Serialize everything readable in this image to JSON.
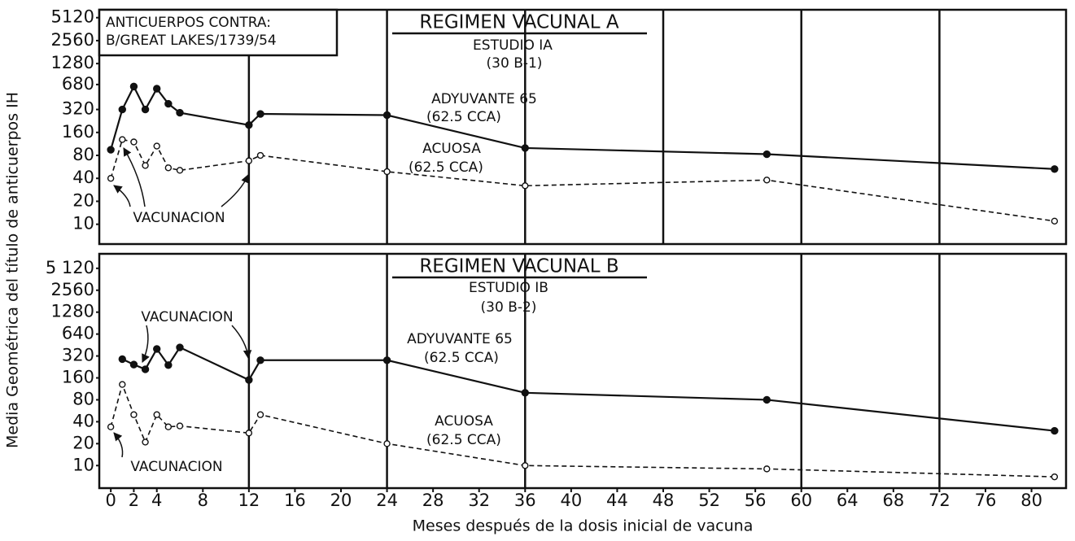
{
  "chart_data": [
    {
      "type": "line",
      "title": "REGIMEN VACUNAL A",
      "subtitle": [
        "ESTUDIO IA",
        "(30 B-1)"
      ],
      "box_text": [
        "ANTICUERPOS CONTRA:",
        "B/GREAT LAKES/1739/54"
      ],
      "annotations": [
        "ADYUVANTE 65",
        "(62.5 CCA)",
        "ACUOSA",
        "(62.5 CCA)",
        "VACUNACION"
      ],
      "ylabel": "Media Geométrica del título de anticuerpos IH",
      "log_scale": true,
      "xlim": [
        -1,
        83
      ],
      "ylim": [
        5.5,
        6500
      ],
      "yticks": [
        10,
        20,
        40,
        80,
        160,
        320,
        680,
        1280,
        2560,
        5120
      ],
      "vlines": [
        12,
        24,
        36,
        48,
        60,
        72
      ],
      "series": [
        {
          "color": "#111111",
          "dash": false,
          "marker": "filled",
          "x": [
            0,
            1,
            2,
            3,
            4,
            5,
            6,
            12,
            13,
            24,
            36,
            57,
            82
          ],
          "values": [
            95,
            320,
            640,
            320,
            600,
            380,
            290,
            200,
            280,
            270,
            100,
            83,
            53
          ]
        },
        {
          "color": "#111111",
          "dash": true,
          "marker": "open",
          "x": [
            0,
            1,
            2,
            3,
            4,
            5,
            6,
            12,
            13,
            24,
            36,
            57,
            82
          ],
          "values": [
            40,
            129,
            120,
            59,
            106,
            55,
            51,
            68,
            80,
            49,
            32,
            38,
            11
          ]
        }
      ]
    },
    {
      "type": "line",
      "title": "REGIMEN VACUNAL B",
      "subtitle": [
        "ESTUDIO IB",
        "(30 B-2)"
      ],
      "annotations": [
        "VACUNACION",
        "ADYUVANTE 65",
        "(62.5 CCA)",
        "ACUOSA",
        "(62.5 CCA)",
        "VACUNACION"
      ],
      "xlabel": "Meses después de la dosis inicial de vacuna",
      "log_scale": true,
      "xlim": [
        -1,
        83
      ],
      "ylim": [
        4.9,
        8100
      ],
      "xticks": [
        0,
        2,
        4,
        8,
        12,
        16,
        20,
        24,
        28,
        32,
        36,
        40,
        44,
        48,
        52,
        56,
        60,
        64,
        68,
        72,
        76,
        80
      ],
      "yticks": [
        10,
        20,
        40,
        80,
        160,
        320,
        640,
        1280,
        2560,
        {
          "value": 5120,
          "label": "5 120"
        }
      ],
      "vlines": [
        12,
        24,
        36,
        60,
        72
      ],
      "series": [
        {
          "color": "#111111",
          "dash": false,
          "marker": "filled",
          "x": [
            1,
            2,
            3,
            4,
            5,
            6,
            12,
            13,
            24,
            36,
            57,
            82
          ],
          "values": [
            290,
            244,
            210,
            400,
            240,
            420,
            150,
            280,
            280,
            100,
            80,
            30
          ]
        },
        {
          "color": "#111111",
          "dash": true,
          "marker": "open",
          "x": [
            0,
            1,
            2,
            3,
            4,
            5,
            6,
            12,
            13,
            24,
            36,
            57,
            82
          ],
          "values": [
            34,
            130,
            50,
            21,
            50,
            34,
            35,
            28,
            50,
            20,
            10,
            9,
            7
          ]
        }
      ]
    }
  ]
}
